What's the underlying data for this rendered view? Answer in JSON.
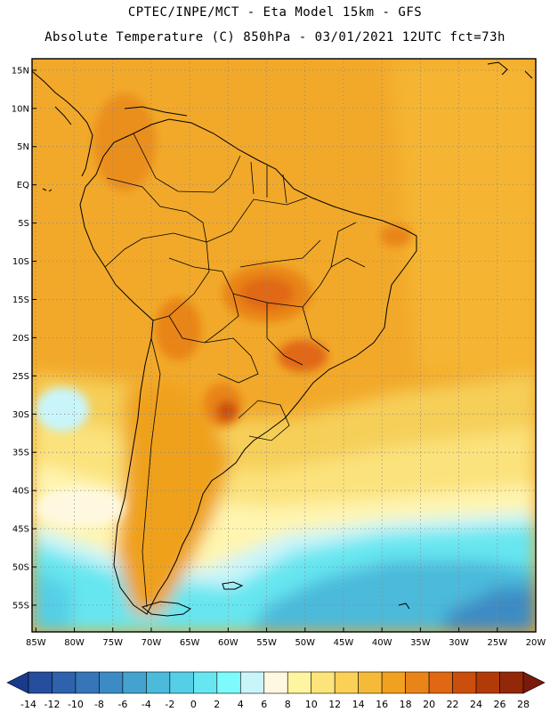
{
  "header": {
    "line1": "CPTEC/INPE/MCT -  Eta Model 15km - GFS",
    "line2": "Absolute Temperature (C) 850hPa - 03/01/2021 12UTC fct=73h"
  },
  "map": {
    "lat_labels": [
      "15N",
      "10N",
      "5N",
      "EQ",
      "5S",
      "10S",
      "15S",
      "20S",
      "25S",
      "30S",
      "35S",
      "40S",
      "45S",
      "50S",
      "55S"
    ],
    "lon_labels": [
      "85W",
      "80W",
      "75W",
      "70W",
      "65W",
      "60W",
      "55W",
      "50W",
      "45W",
      "40W",
      "35W",
      "30W",
      "25W",
      "20W"
    ],
    "lat_values": [
      15,
      10,
      5,
      0,
      -5,
      -10,
      -15,
      -20,
      -25,
      -30,
      -35,
      -40,
      -45,
      -50,
      -55
    ],
    "lon_values": [
      -85,
      -80,
      -75,
      -70,
      -65,
      -60,
      -55,
      -50,
      -45,
      -40,
      -35,
      -30,
      -25,
      -20
    ],
    "extent": {
      "lon_min": -85.5,
      "lon_max": -20,
      "lat_min": -58.5,
      "lat_max": 16.5
    }
  },
  "colorbar": {
    "labels": [
      "-14",
      "-12",
      "-10",
      "-8",
      "-6",
      "-4",
      "-2",
      "0",
      "2",
      "4",
      "6",
      "8",
      "10",
      "12",
      "14",
      "16",
      "18",
      "20",
      "22",
      "24",
      "26",
      "28"
    ],
    "colors": [
      "#1a3a8c",
      "#254e9e",
      "#2e62ad",
      "#3676b8",
      "#3c8bc4",
      "#44a2cf",
      "#4cbadb",
      "#55cfe6",
      "#66e6f0",
      "#7dfafc",
      "#c9f5fa",
      "#fff8e0",
      "#fff4a0",
      "#fde47a",
      "#fad057",
      "#f5bb38",
      "#efa11f",
      "#e98418",
      "#e06812",
      "#cc4e0c",
      "#b23a08",
      "#932808",
      "#7a1a0a"
    ]
  }
}
